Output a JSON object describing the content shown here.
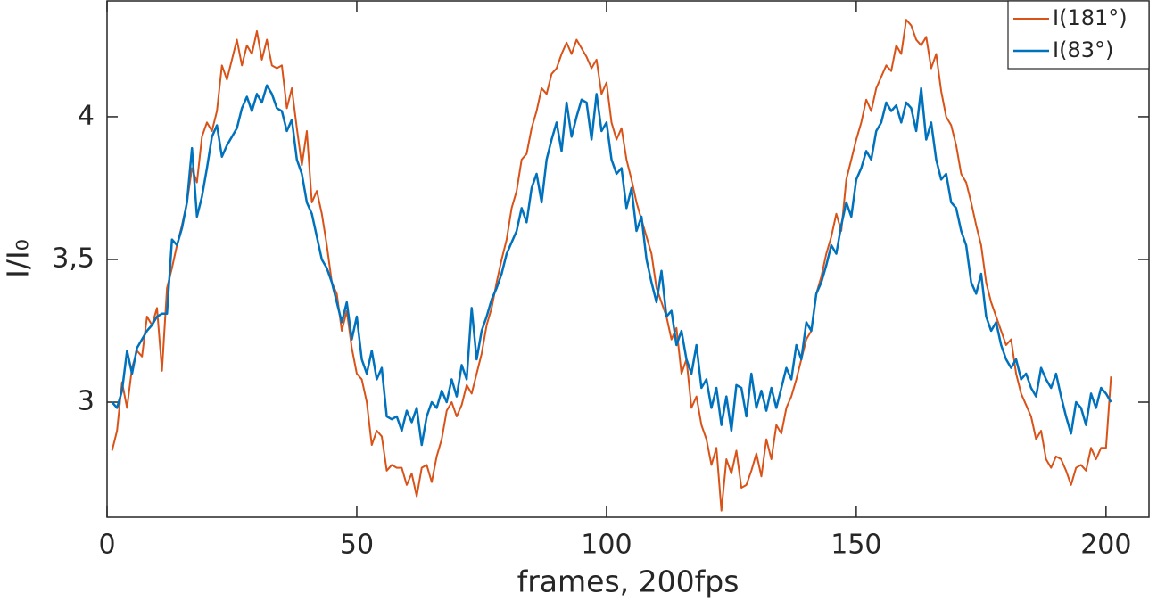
{
  "chart_data": {
    "type": "line",
    "xlabel": "frames, 200fps",
    "ylabel": "I/I₀",
    "x": [
      1,
      2,
      3,
      4,
      5,
      6,
      7,
      8,
      9,
      10,
      11,
      12,
      13,
      14,
      15,
      16,
      17,
      18,
      19,
      20,
      21,
      22,
      23,
      24,
      25,
      26,
      27,
      28,
      29,
      30,
      31,
      32,
      33,
      34,
      35,
      36,
      37,
      38,
      39,
      40,
      41,
      42,
      43,
      44,
      45,
      46,
      47,
      48,
      49,
      50,
      51,
      52,
      53,
      54,
      55,
      56,
      57,
      58,
      59,
      60,
      61,
      62,
      63,
      64,
      65,
      66,
      67,
      68,
      69,
      70,
      71,
      72,
      73,
      74,
      75,
      76,
      77,
      78,
      79,
      80,
      81,
      82,
      83,
      84,
      85,
      86,
      87,
      88,
      89,
      90,
      91,
      92,
      93,
      94,
      95,
      96,
      97,
      98,
      99,
      100,
      101,
      102,
      103,
      104,
      105,
      106,
      107,
      108,
      109,
      110,
      111,
      112,
      113,
      114,
      115,
      116,
      117,
      118,
      119,
      120,
      121,
      122,
      123,
      124,
      125,
      126,
      127,
      128,
      129,
      130,
      131,
      132,
      133,
      134,
      135,
      136,
      137,
      138,
      139,
      140,
      141,
      142,
      143,
      144,
      145,
      146,
      147,
      148,
      149,
      150,
      151,
      152,
      153,
      154,
      155,
      156,
      157,
      158,
      159,
      160,
      161,
      162,
      163,
      164,
      165,
      166,
      167,
      168,
      169,
      170,
      171,
      172,
      173,
      174,
      175,
      176,
      177,
      178,
      179,
      180,
      181,
      182,
      183,
      184,
      185,
      186,
      187,
      188,
      189,
      190,
      191,
      192,
      193,
      194,
      195,
      196,
      197,
      198,
      199,
      200,
      201
    ],
    "series": [
      {
        "name": "I(181°)",
        "color": "#d95319",
        "width": 2,
        "values": [
          2.83,
          2.9,
          3.07,
          2.98,
          3.12,
          3.18,
          3.16,
          3.3,
          3.27,
          3.33,
          3.11,
          3.4,
          3.47,
          3.55,
          3.62,
          3.7,
          3.82,
          3.77,
          3.93,
          3.98,
          3.95,
          4.02,
          4.18,
          4.13,
          4.2,
          4.27,
          4.18,
          4.25,
          4.22,
          4.3,
          4.2,
          4.27,
          4.18,
          4.17,
          4.18,
          4.03,
          4.1,
          3.96,
          3.83,
          3.95,
          3.7,
          3.74,
          3.66,
          3.55,
          3.42,
          3.38,
          3.25,
          3.32,
          3.19,
          3.1,
          3.08,
          3.0,
          2.85,
          2.9,
          2.88,
          2.76,
          2.78,
          2.77,
          2.77,
          2.71,
          2.75,
          2.67,
          2.77,
          2.78,
          2.72,
          2.81,
          2.87,
          2.97,
          3.0,
          2.95,
          2.99,
          3.06,
          3.03,
          3.1,
          3.17,
          3.27,
          3.33,
          3.42,
          3.5,
          3.57,
          3.68,
          3.74,
          3.85,
          3.87,
          3.96,
          4.02,
          4.1,
          4.08,
          4.15,
          4.17,
          4.22,
          4.26,
          4.22,
          4.27,
          4.24,
          4.21,
          4.17,
          4.2,
          4.08,
          4.12,
          3.98,
          3.92,
          3.96,
          3.85,
          3.78,
          3.7,
          3.64,
          3.58,
          3.52,
          3.4,
          3.35,
          3.3,
          3.22,
          3.26,
          3.1,
          3.15,
          2.98,
          3.02,
          2.92,
          2.87,
          2.78,
          2.84,
          2.62,
          2.8,
          2.75,
          2.83,
          2.7,
          2.71,
          2.76,
          2.82,
          2.74,
          2.87,
          2.8,
          2.92,
          2.89,
          2.98,
          3.02,
          3.08,
          3.15,
          3.22,
          3.25,
          3.38,
          3.44,
          3.52,
          3.58,
          3.66,
          3.6,
          3.78,
          3.85,
          3.92,
          3.98,
          4.06,
          4.02,
          4.1,
          4.14,
          4.18,
          4.16,
          4.25,
          4.22,
          4.34,
          4.32,
          4.27,
          4.25,
          4.28,
          4.17,
          4.22,
          4.09,
          4.0,
          3.97,
          3.9,
          3.8,
          3.77,
          3.7,
          3.62,
          3.55,
          3.42,
          3.35,
          3.3,
          3.25,
          3.2,
          3.22,
          3.1,
          3.03,
          2.99,
          2.95,
          2.87,
          2.9,
          2.8,
          2.77,
          2.81,
          2.8,
          2.76,
          2.71,
          2.77,
          2.78,
          2.76,
          2.84,
          2.8,
          2.84,
          2.84,
          3.09
        ]
      },
      {
        "name": "I(83°)",
        "color": "#0072bd",
        "width": 2.5,
        "values": [
          3.0,
          2.98,
          3.04,
          3.18,
          3.1,
          3.19,
          3.22,
          3.25,
          3.27,
          3.3,
          3.31,
          3.31,
          3.57,
          3.55,
          3.61,
          3.7,
          3.89,
          3.65,
          3.72,
          3.82,
          3.93,
          3.97,
          3.86,
          3.9,
          3.93,
          3.96,
          4.03,
          4.07,
          4.02,
          4.08,
          4.05,
          4.11,
          4.08,
          4.03,
          4.02,
          3.95,
          3.99,
          3.85,
          3.8,
          3.7,
          3.66,
          3.58,
          3.5,
          3.47,
          3.42,
          3.35,
          3.28,
          3.35,
          3.22,
          3.3,
          3.15,
          3.1,
          3.18,
          3.08,
          3.12,
          2.95,
          2.94,
          2.95,
          2.9,
          2.97,
          2.93,
          2.98,
          2.85,
          2.95,
          3.0,
          2.98,
          3.04,
          3.0,
          3.08,
          3.02,
          3.13,
          3.08,
          3.33,
          3.15,
          3.25,
          3.3,
          3.36,
          3.4,
          3.45,
          3.52,
          3.56,
          3.6,
          3.68,
          3.63,
          3.75,
          3.8,
          3.7,
          3.85,
          3.92,
          3.98,
          3.88,
          4.05,
          3.93,
          4.0,
          4.06,
          4.05,
          3.92,
          4.08,
          3.95,
          3.98,
          3.85,
          3.8,
          3.82,
          3.68,
          3.75,
          3.6,
          3.65,
          3.5,
          3.42,
          3.35,
          3.46,
          3.3,
          3.32,
          3.2,
          3.25,
          3.15,
          3.1,
          3.2,
          3.05,
          3.08,
          2.98,
          3.05,
          2.92,
          3.02,
          2.9,
          3.06,
          3.05,
          2.95,
          3.1,
          2.98,
          3.04,
          2.97,
          3.05,
          2.98,
          3.05,
          3.12,
          3.08,
          3.2,
          3.15,
          3.28,
          3.25,
          3.38,
          3.42,
          3.48,
          3.55,
          3.52,
          3.62,
          3.7,
          3.65,
          3.78,
          3.82,
          3.88,
          3.85,
          3.95,
          3.98,
          4.05,
          4.02,
          4.04,
          3.98,
          4.05,
          4.03,
          3.95,
          4.1,
          3.92,
          3.98,
          3.85,
          3.78,
          3.8,
          3.7,
          3.68,
          3.6,
          3.55,
          3.42,
          3.38,
          3.45,
          3.3,
          3.25,
          3.28,
          3.2,
          3.15,
          3.12,
          3.15,
          3.08,
          3.1,
          3.05,
          3.02,
          3.12,
          3.08,
          3.05,
          3.1,
          3.02,
          2.95,
          2.89,
          3.0,
          2.98,
          2.92,
          3.03,
          2.98,
          3.05,
          3.03,
          3.0
        ]
      }
    ],
    "xlim": [
      0,
      208.6
    ],
    "xticks": [
      0,
      50,
      100,
      150,
      200
    ],
    "ylim": [
      2.597,
      4.406
    ],
    "yticks": [
      3,
      {
        "value": 3.5,
        "label": "3,5"
      },
      4
    ],
    "grid": false,
    "legend": "top-right"
  }
}
